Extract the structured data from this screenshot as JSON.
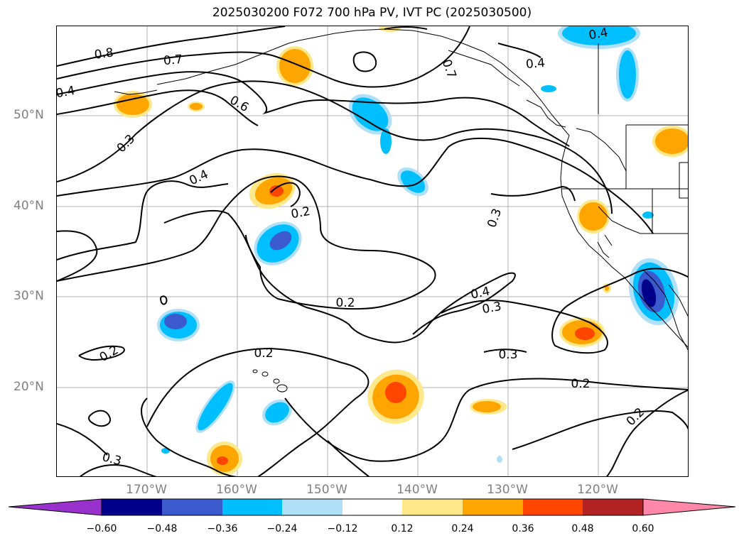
{
  "title": "2025030200 F072 700 hPa PV, IVT PC (2025030500)",
  "map": {
    "lat_labels": [
      "50°N",
      "40°N",
      "30°N",
      "20°N"
    ],
    "lon_labels": [
      "170°W",
      "160°W",
      "150°W",
      "140°W",
      "130°W",
      "120°W"
    ],
    "gridline_color": "#b0b0b0",
    "label_color": "#808080"
  },
  "contour_labels": [
    "0.8",
    "0.7",
    "0.4",
    "0.6",
    "0.7",
    "0.4",
    "0.4",
    "0.3",
    "0.4",
    "0.2",
    "0.3",
    "0.2",
    "0.4",
    "0.3",
    "0.2",
    "0.3",
    "0.2",
    "0.2",
    "0.3",
    "0.2"
  ],
  "colorbar": {
    "tick_labels": [
      "−0.60",
      "−0.48",
      "−0.36",
      "−0.24",
      "−0.12",
      "0.12",
      "0.24",
      "0.36",
      "0.48",
      "0.60"
    ],
    "colors": [
      "#9932cc",
      "#00008b",
      "#3a5acd",
      "#00bfff",
      "#b0e0f8",
      "#ffffff",
      "#ffe88a",
      "#ffa500",
      "#ff4500",
      "#b22222",
      "#ff88aa"
    ]
  }
}
